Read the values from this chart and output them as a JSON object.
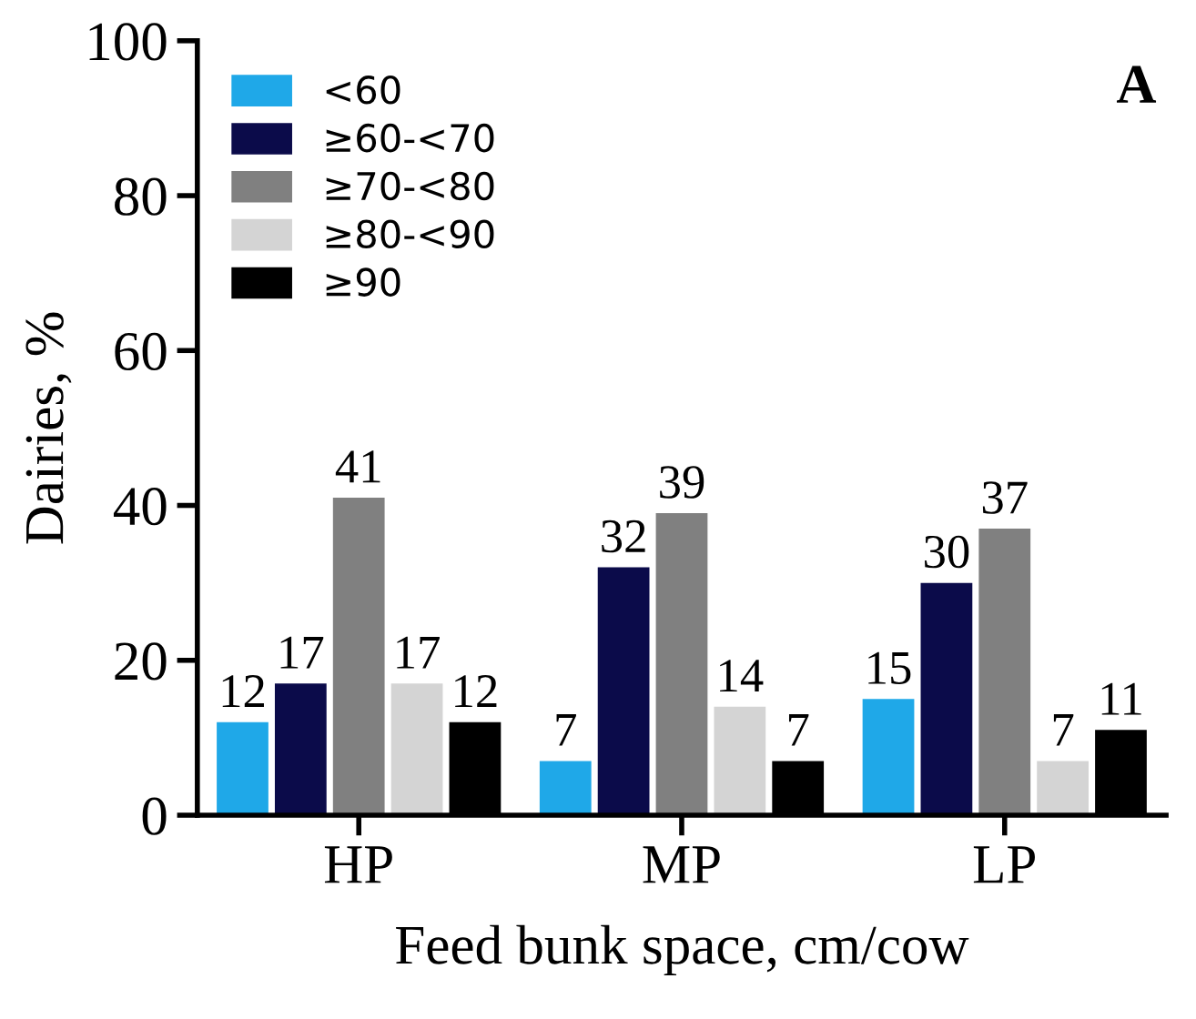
{
  "chart_data": {
    "type": "bar",
    "title": "A",
    "xlabel": "Feed bunk space, cm/cow",
    "ylabel": "Dairies, %",
    "categories": [
      "HP",
      "MP",
      "LP"
    ],
    "series": [
      {
        "name": "<60",
        "color": "#1fa8e8",
        "values": [
          12,
          7,
          15
        ]
      },
      {
        "name": "≥60-<70",
        "color": "#0b0b4a",
        "values": [
          17,
          32,
          30
        ]
      },
      {
        "name": "≥70-<80",
        "color": "#808080",
        "values": [
          41,
          39,
          37
        ]
      },
      {
        "name": "≥80-<90",
        "color": "#d4d4d4",
        "values": [
          17,
          14,
          7
        ]
      },
      {
        "name": "≥90",
        "color": "#000000",
        "values": [
          12,
          7,
          11
        ]
      }
    ],
    "ylim": [
      0,
      100
    ],
    "yticks": [
      0,
      20,
      40,
      60,
      80,
      100
    ],
    "data_labels": true,
    "legend": "top left",
    "grid": false
  }
}
